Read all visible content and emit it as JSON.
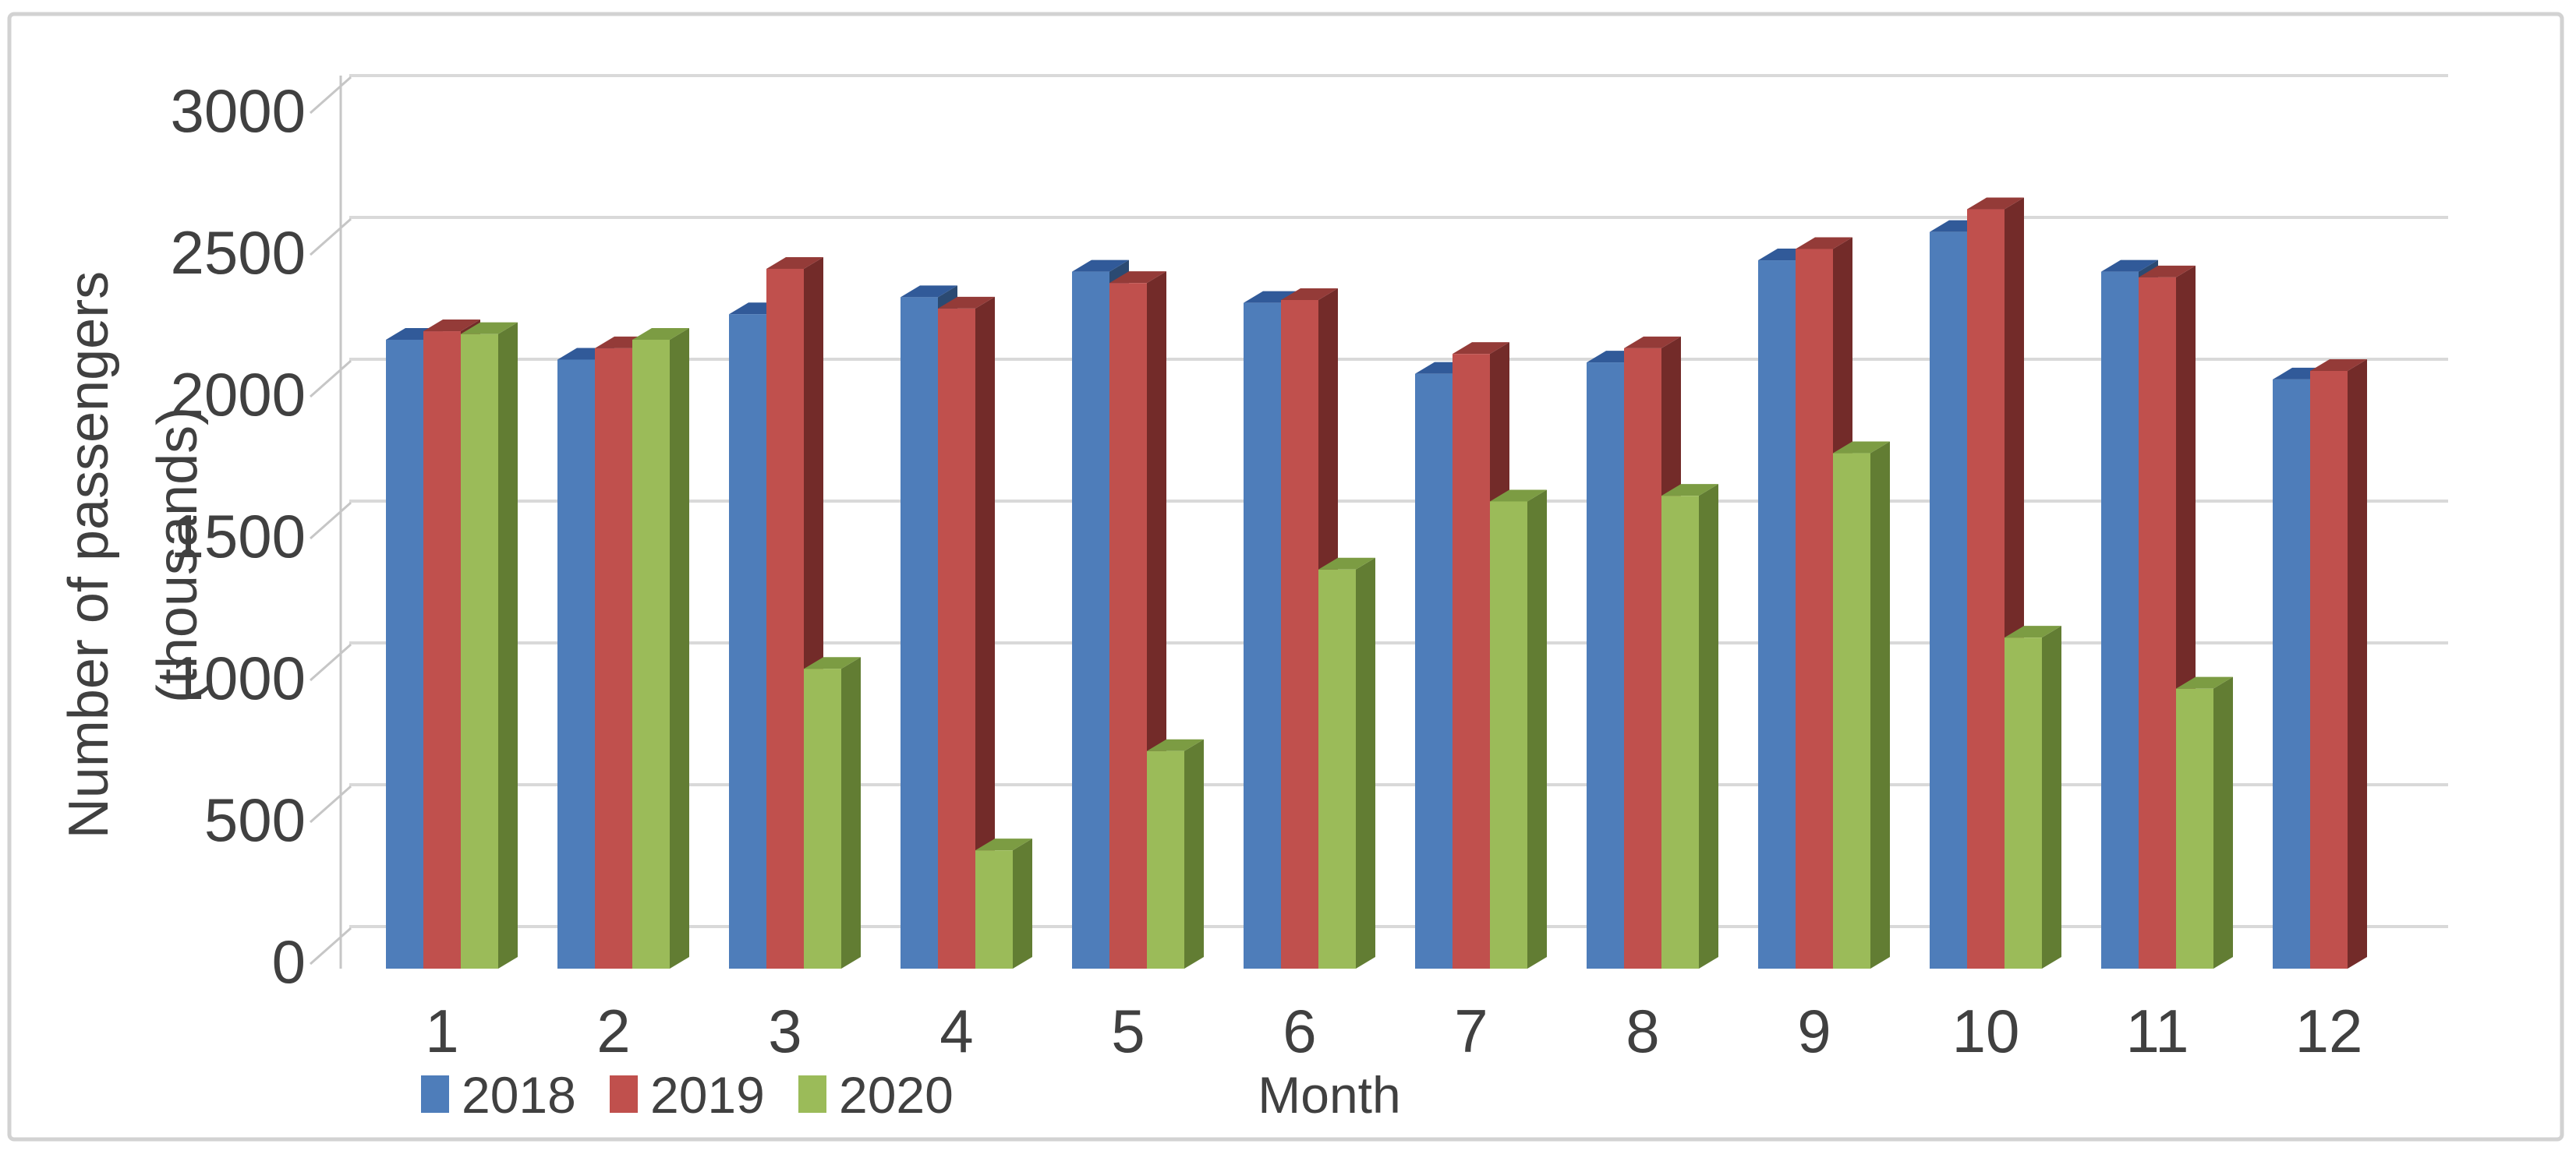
{
  "chart_data": {
    "type": "bar",
    "variant": "3d-clustered-column",
    "title": "",
    "xlabel": "Month",
    "ylabel": "Number of passengers (thousands)",
    "ylabel_lines": [
      "Number of passengers",
      "(thousands)"
    ],
    "categories": [
      "1",
      "2",
      "3",
      "4",
      "5",
      "6",
      "7",
      "8",
      "9",
      "10",
      "11",
      "12"
    ],
    "yticks": [
      0,
      500,
      1000,
      1500,
      2000,
      2500,
      3000
    ],
    "ylim": [
      0,
      3000
    ],
    "grid": true,
    "legend_position": "bottom-left",
    "legend_entries": [
      "2018",
      "2019",
      "2020"
    ],
    "series": [
      {
        "name": "2018",
        "color": "#4E7DBA",
        "side_color": "#2B4A72",
        "top_color": "#315A99",
        "values": [
          2110,
          2040,
          2200,
          2260,
          2350,
          2240,
          1990,
          2030,
          2390,
          2490,
          2350,
          1970
        ]
      },
      {
        "name": "2019",
        "color": "#C0504D",
        "side_color": "#732B29",
        "top_color": "#943B38",
        "values": [
          2140,
          2080,
          2360,
          2220,
          2310,
          2250,
          2060,
          2080,
          2430,
          2570,
          2330,
          2000
        ]
      },
      {
        "name": "2020",
        "color": "#9BBB59",
        "side_color": "#627D33",
        "top_color": "#7C9C43",
        "values": [
          2130,
          2110,
          950,
          310,
          660,
          1300,
          1540,
          1560,
          1710,
          1060,
          880,
          null
        ]
      }
    ],
    "colors": {
      "gridline": "#D9D9D9",
      "axis_line": "#C6C6C6",
      "text": "#404040",
      "figure_border": "#D2D2D2",
      "background": "#FFFFFF"
    }
  }
}
